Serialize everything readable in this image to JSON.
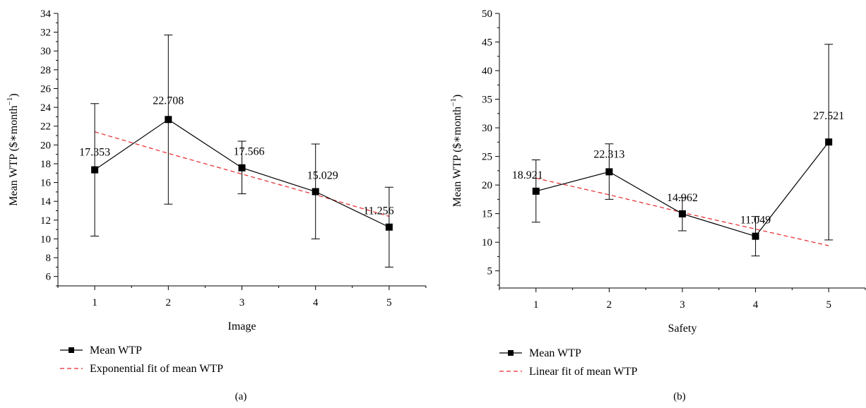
{
  "chart_data": [
    {
      "type": "line",
      "panel_label": "(a)",
      "xlabel": "Image",
      "ylabel": "Mean WTP ($∗month",
      "ylabel_superscript": "−1",
      "ylabel_close": ")",
      "xlim": [
        0.5,
        5.5
      ],
      "ylim": [
        5,
        34
      ],
      "x_ticks": [
        1,
        2,
        3,
        4,
        5
      ],
      "y_ticks": [
        6,
        8,
        10,
        12,
        14,
        16,
        18,
        20,
        22,
        24,
        26,
        28,
        30,
        32,
        34
      ],
      "y_minor_ticks": [
        5,
        7,
        9,
        11,
        13,
        15,
        17,
        19,
        21,
        23,
        25,
        27,
        29,
        31,
        33
      ],
      "series": [
        {
          "name": "Mean WTP",
          "color": "#000000",
          "marker": "square",
          "x": [
            1,
            2,
            3,
            4,
            5
          ],
          "y": [
            17.353,
            22.708,
            17.566,
            15.029,
            11.256
          ],
          "error_low": [
            10.3,
            13.7,
            14.8,
            10.0,
            7.0
          ],
          "error_high": [
            24.4,
            31.7,
            20.4,
            20.1,
            15.5
          ],
          "labels": [
            "17.353",
            "22.708",
            "17.566",
            "15.029",
            "11.256"
          ]
        },
        {
          "name": "Exponential fit of mean WTP",
          "color": "#e8262a",
          "dashed": true,
          "x": [
            1,
            2,
            3,
            4,
            5
          ],
          "y": [
            21.4,
            19.1,
            16.9,
            14.7,
            12.4
          ]
        }
      ]
    },
    {
      "type": "line",
      "panel_label": "(b)",
      "xlabel": "Safety",
      "ylabel": "Mean WTP ($∗month",
      "ylabel_superscript": "−1",
      "ylabel_close": ")",
      "xlim": [
        0.5,
        5.5
      ],
      "ylim": [
        2,
        50
      ],
      "x_ticks": [
        1,
        2,
        3,
        4,
        5
      ],
      "y_ticks": [
        5,
        10,
        15,
        20,
        25,
        30,
        35,
        40,
        45,
        50
      ],
      "y_minor_ticks": [
        2.5,
        7.5,
        12.5,
        17.5,
        22.5,
        27.5,
        32.5,
        37.5,
        42.5,
        47.5
      ],
      "series": [
        {
          "name": "Mean WTP",
          "color": "#000000",
          "marker": "square",
          "x": [
            1,
            2,
            3,
            4,
            5
          ],
          "y": [
            18.921,
            22.313,
            14.962,
            11.049,
            27.521
          ],
          "error_low": [
            13.5,
            17.5,
            12.0,
            7.6,
            10.4
          ],
          "error_high": [
            24.4,
            27.2,
            17.8,
            14.5,
            44.6
          ],
          "labels": [
            "18.921",
            "22.313",
            "14.962",
            "11.049",
            "27.521"
          ]
        },
        {
          "name": "Linear fit of mean WTP",
          "color": "#e8262a",
          "dashed": true,
          "x": [
            1,
            2,
            3,
            4,
            5
          ],
          "y": [
            21.2,
            18.3,
            15.2,
            12.3,
            9.4
          ]
        }
      ]
    }
  ]
}
